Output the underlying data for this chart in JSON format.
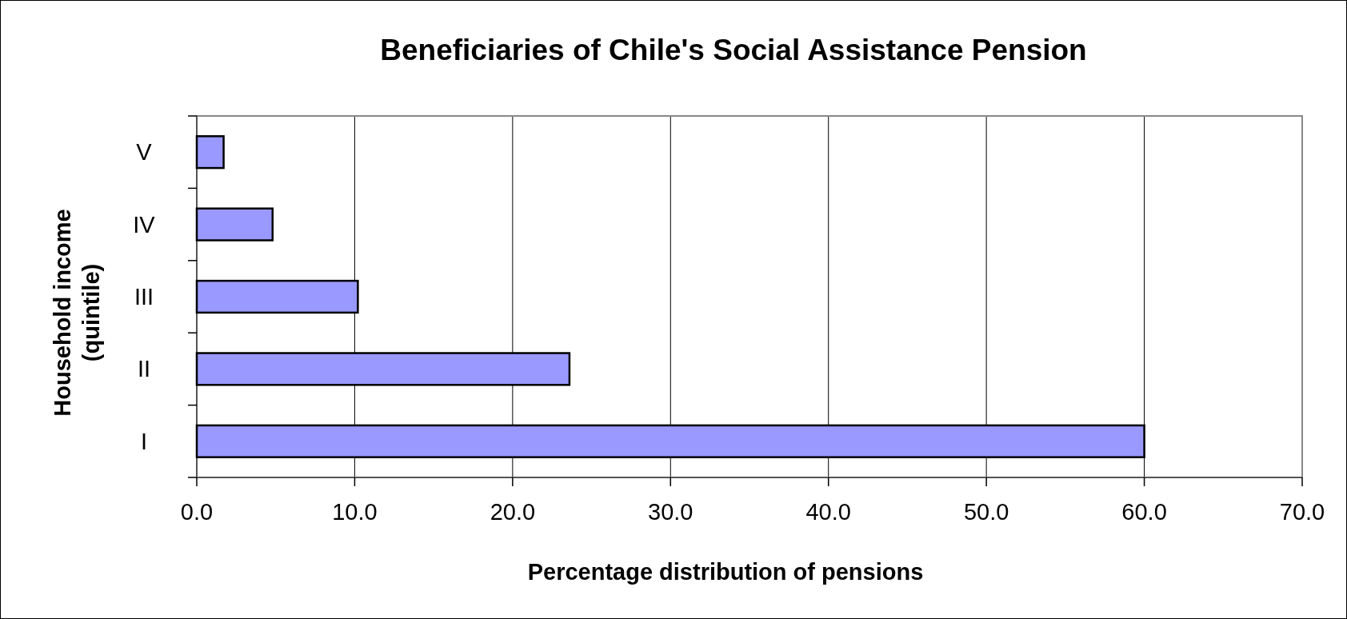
{
  "chart_data": {
    "type": "bar",
    "orientation": "horizontal",
    "title": "Beneficiaries of Chile's Social Assistance Pension",
    "xlabel": "Percentage distribution of pensions",
    "ylabel": "Household income (quintile)",
    "categories": [
      "V",
      "IV",
      "III",
      "II",
      "I"
    ],
    "values": [
      1.7,
      4.8,
      10.2,
      23.6,
      60.0
    ],
    "color": "#9999ff",
    "xlim": [
      0,
      70
    ],
    "xticks": [
      {
        "value": 0,
        "label": "0.0"
      },
      {
        "value": 10,
        "label": "10.0"
      },
      {
        "value": 20,
        "label": "20.0"
      },
      {
        "value": 30,
        "label": "30.0"
      },
      {
        "value": 40,
        "label": "40.0"
      },
      {
        "value": 50,
        "label": "50.0"
      },
      {
        "value": 60,
        "label": "60.0"
      },
      {
        "value": 70,
        "label": "70.0"
      }
    ],
    "grid": "x"
  }
}
